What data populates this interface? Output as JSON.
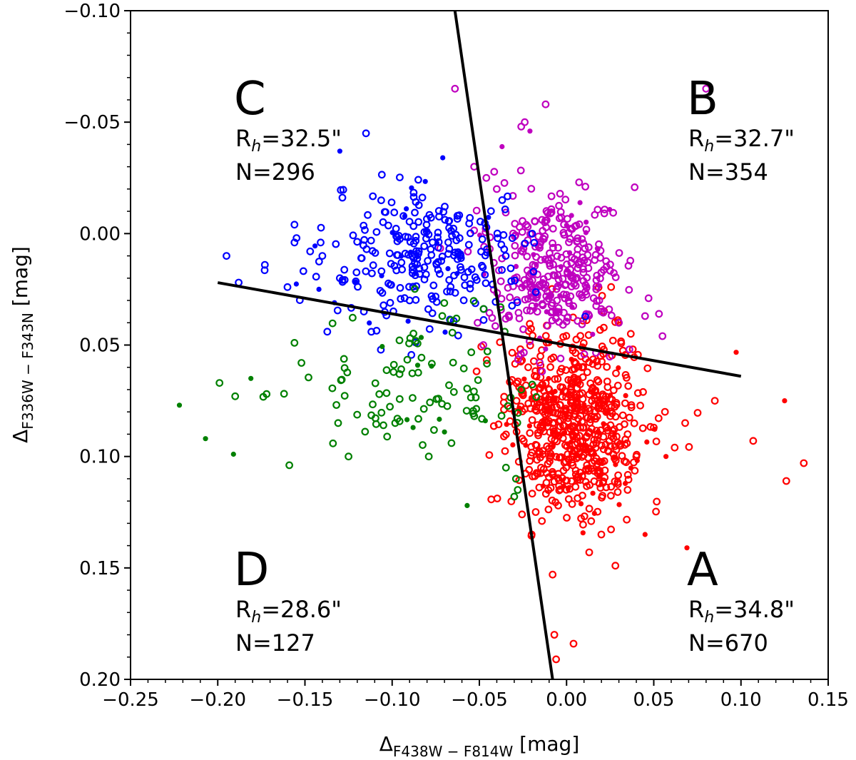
{
  "chart_data": {
    "type": "scatter",
    "title": "",
    "xlabel": {
      "base": "Δ",
      "sub": "F438W − F814W",
      "unit": " [mag]"
    },
    "ylabel": {
      "base": "Δ",
      "sub": "F336W − F343N",
      "unit": " [mag]"
    },
    "xlim": [
      -0.25,
      0.15
    ],
    "ylim": [
      -0.1,
      0.2
    ],
    "y_inverted": true,
    "x_ticks": [
      -0.25,
      -0.2,
      -0.15,
      -0.1,
      -0.05,
      0.0,
      0.05,
      0.1,
      0.15
    ],
    "x_tick_labels": [
      "−0.25",
      "−0.20",
      "−0.15",
      "−0.10",
      "−0.05",
      "0.00",
      "0.05",
      "0.10",
      "0.15"
    ],
    "y_ticks": [
      -0.1,
      -0.05,
      0.0,
      0.05,
      0.1,
      0.15,
      0.2
    ],
    "y_tick_labels": [
      "−0.10",
      "−0.05",
      "0.00",
      "0.05",
      "0.10",
      "0.15",
      "0.20"
    ],
    "dividing_lines": [
      {
        "name": "separator-steep",
        "x": [
          -0.064,
          -0.008
        ],
        "y": [
          -0.1,
          0.2
        ]
      },
      {
        "name": "separator-shallow",
        "x": [
          -0.2,
          0.1
        ],
        "y": [
          0.022,
          0.064
        ]
      }
    ],
    "groups": [
      {
        "id": "A",
        "color": "#ff0000",
        "label": "A",
        "rh": "R",
        "rh_sub": "h",
        "rh_value": "=34.8\"",
        "n": "N=670",
        "placement": "bottom-right"
      },
      {
        "id": "B",
        "color": "#bf00bf",
        "label": "B",
        "rh": "R",
        "rh_sub": "h",
        "rh_value": "=32.7\"",
        "n": "N=354",
        "placement": "top-right"
      },
      {
        "id": "C",
        "color": "#0000ff",
        "label": "C",
        "rh": "R",
        "rh_sub": "h",
        "rh_value": "=32.5\"",
        "n": "N=296",
        "placement": "top-left"
      },
      {
        "id": "D",
        "color": "#008000",
        "label": "D",
        "rh": "R",
        "rh_sub": "h",
        "rh_value": "=28.6\"",
        "n": "N=127",
        "placement": "bottom-left"
      }
    ],
    "series": [
      {
        "name": "A",
        "color": "#ff0000",
        "points": [
          [
            0.085,
            0.075,
            0
          ],
          [
            0.107,
            0.093,
            0
          ],
          [
            0.125,
            0.075,
            1
          ],
          [
            0.136,
            0.103,
            0
          ],
          [
            0.126,
            0.111,
            0
          ],
          [
            0.068,
            0.085,
            0
          ],
          [
            0.062,
            0.096,
            0
          ],
          [
            0.057,
            0.1,
            1
          ],
          [
            0.05,
            0.087,
            0
          ],
          [
            0.045,
            0.135,
            1
          ],
          [
            0.069,
            0.141,
            1
          ],
          [
            0.028,
            0.149,
            0
          ],
          [
            0.013,
            0.143,
            0
          ],
          [
            -0.007,
            0.18,
            0
          ],
          [
            -0.006,
            0.191,
            0
          ],
          [
            0.004,
            0.184,
            0
          ],
          [
            -0.008,
            0.153,
            0
          ],
          [
            -0.02,
            0.135,
            0
          ],
          [
            0.035,
            0.115,
            0
          ],
          [
            0.04,
            0.1,
            0
          ],
          [
            -0.022,
            0.06,
            0
          ],
          [
            -0.015,
            0.055,
            0
          ],
          [
            -0.01,
            0.07,
            0
          ]
        ]
      },
      {
        "name": "B",
        "color": "#bf00bf",
        "points": [
          [
            -0.064,
            -0.065,
            0
          ],
          [
            -0.012,
            -0.058,
            0
          ],
          [
            0.08,
            -0.065,
            0
          ],
          [
            -0.024,
            -0.05,
            0
          ],
          [
            -0.026,
            -0.048,
            0
          ],
          [
            -0.021,
            -0.046,
            1
          ],
          [
            -0.037,
            -0.039,
            1
          ],
          [
            -0.053,
            -0.03,
            0
          ],
          [
            -0.046,
            -0.025,
            0
          ],
          [
            -0.04,
            -0.02,
            0
          ],
          [
            0.047,
            0.029,
            0
          ],
          [
            0.053,
            0.036,
            0
          ],
          [
            0.045,
            0.037,
            0
          ],
          [
            0.055,
            0.046,
            0
          ],
          [
            0.036,
            0.052,
            0
          ],
          [
            0.03,
            0.04,
            0
          ],
          [
            0.02,
            0.035,
            0
          ]
        ]
      },
      {
        "name": "C",
        "color": "#0000ff",
        "points": [
          [
            -0.195,
            0.01,
            0
          ],
          [
            -0.188,
            0.022,
            0
          ],
          [
            -0.173,
            0.014,
            0
          ],
          [
            -0.16,
            0.024,
            0
          ],
          [
            -0.156,
            -0.004,
            0
          ],
          [
            -0.156,
            0.004,
            0
          ],
          [
            -0.141,
            0.004,
            0
          ],
          [
            -0.14,
            0.01,
            0
          ],
          [
            -0.147,
            0.008,
            0
          ],
          [
            -0.115,
            -0.045,
            0
          ],
          [
            -0.13,
            -0.037,
            1
          ],
          [
            -0.071,
            -0.034,
            1
          ],
          [
            -0.142,
            0.025,
            1
          ],
          [
            -0.13,
            0.02,
            0
          ],
          [
            -0.09,
            0.03,
            0
          ]
        ]
      },
      {
        "name": "D",
        "color": "#008000",
        "points": [
          [
            -0.222,
            0.077,
            1
          ],
          [
            -0.207,
            0.092,
            1
          ],
          [
            -0.191,
            0.099,
            1
          ],
          [
            -0.199,
            0.067,
            0
          ],
          [
            -0.19,
            0.073,
            0
          ],
          [
            -0.181,
            0.065,
            1
          ],
          [
            -0.172,
            0.072,
            0
          ],
          [
            -0.156,
            0.049,
            0
          ],
          [
            -0.152,
            0.058,
            0
          ],
          [
            -0.131,
            0.085,
            0
          ],
          [
            -0.125,
            0.1,
            0
          ],
          [
            -0.105,
            0.086,
            0
          ],
          [
            -0.097,
            0.083,
            0
          ],
          [
            -0.088,
            0.087,
            1
          ],
          [
            -0.079,
            0.1,
            0
          ],
          [
            -0.057,
            0.122,
            1
          ],
          [
            -0.028,
            0.115,
            0
          ],
          [
            -0.029,
            0.11,
            0
          ],
          [
            -0.03,
            0.118,
            0
          ],
          [
            -0.066,
            0.094,
            0
          ],
          [
            -0.07,
            0.089,
            1
          ]
        ]
      }
    ],
    "clusters": [
      {
        "series": "A",
        "cx": 0.005,
        "cy": 0.085,
        "sx": 0.02,
        "sy": 0.02,
        "count": 640,
        "seed": 11
      },
      {
        "series": "B",
        "cx": -0.007,
        "cy": 0.015,
        "sx": 0.018,
        "sy": 0.017,
        "count": 330,
        "seed": 23
      },
      {
        "series": "C",
        "cx": -0.08,
        "cy": 0.01,
        "sx": 0.03,
        "sy": 0.016,
        "count": 270,
        "seed": 37
      },
      {
        "series": "D",
        "cx": -0.085,
        "cy": 0.07,
        "sx": 0.035,
        "sy": 0.018,
        "count": 100,
        "seed": 53
      }
    ]
  }
}
